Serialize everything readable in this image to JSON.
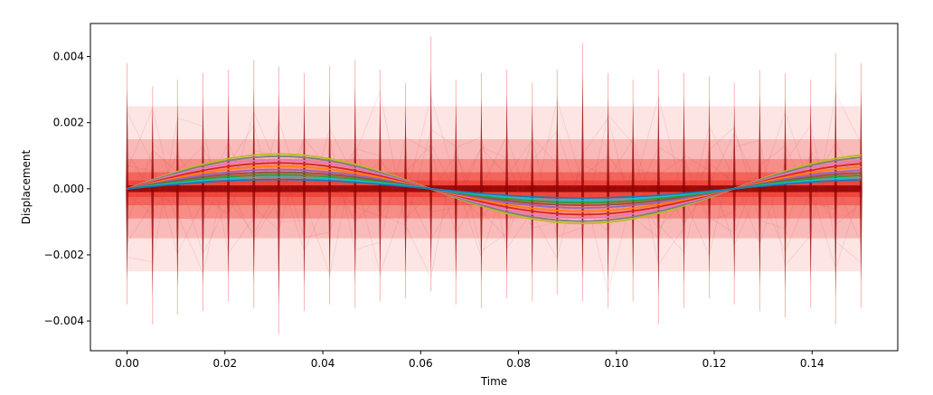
{
  "chart_data": {
    "type": "line",
    "title": "",
    "xlabel": "Time",
    "ylabel": "Displacement",
    "xlim": [
      -0.0075,
      0.1575
    ],
    "ylim": [
      -0.0049,
      0.005
    ],
    "x_ticks": [
      0.0,
      0.02,
      0.04,
      0.06,
      0.08,
      0.1,
      0.12,
      0.14
    ],
    "x_tick_labels": [
      "0.00",
      "0.02",
      "0.04",
      "0.06",
      "0.08",
      "0.10",
      "0.12",
      "0.14"
    ],
    "y_ticks": [
      -0.004,
      -0.002,
      0.0,
      0.002,
      0.004
    ],
    "y_tick_labels": [
      "−0.004",
      "−0.002",
      "0.000",
      "0.002",
      "0.004"
    ],
    "grid": false,
    "legend": "none",
    "sample_times": [
      0.0,
      0.0052,
      0.0103,
      0.0155,
      0.0207,
      0.0259,
      0.031,
      0.0362,
      0.0414,
      0.0466,
      0.0517,
      0.0569,
      0.0621,
      0.0672,
      0.0724,
      0.0776,
      0.0828,
      0.0879,
      0.0931,
      0.0983,
      0.1034,
      0.1086,
      0.1138,
      0.119,
      0.1241,
      0.1293,
      0.1345,
      0.1397,
      0.1448,
      0.15
    ],
    "spike_tips": [
      0.0038,
      0.0031,
      0.0033,
      0.0035,
      0.0036,
      0.0039,
      0.0037,
      0.0035,
      0.0037,
      0.0039,
      0.0036,
      0.0032,
      0.0046,
      0.0033,
      0.0035,
      0.0036,
      0.0032,
      0.0036,
      0.0044,
      0.0035,
      0.0033,
      0.0036,
      0.0035,
      0.0034,
      0.0032,
      0.0036,
      0.0035,
      0.0033,
      0.0041,
      0.0038
    ],
    "spike_bottoms": [
      -0.0035,
      -0.0041,
      -0.0038,
      -0.0037,
      -0.0034,
      -0.0036,
      -0.0044,
      -0.0037,
      -0.0035,
      -0.0036,
      -0.0034,
      -0.0033,
      -0.0031,
      -0.0035,
      -0.0036,
      -0.0033,
      -0.0034,
      -0.0032,
      -0.0034,
      -0.0036,
      -0.0034,
      -0.0041,
      -0.0036,
      -0.0033,
      -0.0035,
      -0.0037,
      -0.0039,
      -0.0036,
      -0.0041,
      -0.0036
    ],
    "band_half_widths": [
      0.0025,
      0.0015,
      0.0009,
      0.0005,
      0.00025
    ],
    "series": [
      {
        "amplitude": 0.00105,
        "color": "#bcbd22"
      },
      {
        "amplitude": 0.00098,
        "color": "#7f7f7f"
      },
      {
        "amplitude": 0.00088,
        "color": "#e377c2"
      },
      {
        "amplitude": 0.00078,
        "color": "#d62728"
      },
      {
        "amplitude": 0.00068,
        "color": "#ff7f0e"
      },
      {
        "amplitude": 0.00058,
        "color": "#9467bd"
      },
      {
        "amplitude": 0.0005,
        "color": "#8c564b"
      },
      {
        "amplitude": 0.00042,
        "color": "#2ca02c"
      },
      {
        "amplitude": 0.00035,
        "color": "#17becf"
      },
      {
        "amplitude": 0.00028,
        "color": "#1f77b4"
      }
    ],
    "period": 0.124,
    "spike_color": "#8b0000",
    "band_color": "#ee2a1f"
  }
}
